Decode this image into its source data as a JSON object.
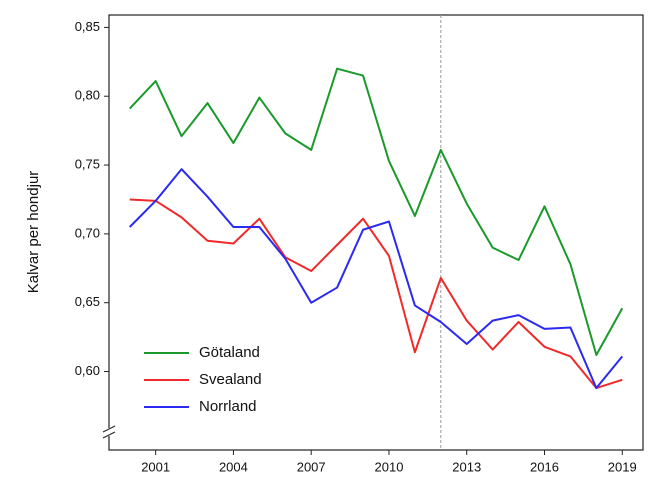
{
  "chart_data": {
    "type": "line",
    "y_label": "Kalvar per hondjur",
    "x": [
      2000,
      2001,
      2002,
      2003,
      2004,
      2005,
      2006,
      2007,
      2008,
      2009,
      2010,
      2011,
      2012,
      2013,
      2014,
      2015,
      2016,
      2017,
      2018,
      2019
    ],
    "series": [
      {
        "name": "Götaland",
        "color": "#1a9a2a",
        "values": [
          0.791,
          0.811,
          0.771,
          0.795,
          0.766,
          0.799,
          0.773,
          0.761,
          0.82,
          0.815,
          0.753,
          0.713,
          0.761,
          0.722,
          0.69,
          0.681,
          0.72,
          0.678,
          0.612,
          0.646
        ]
      },
      {
        "name": "Svealand",
        "color": "#f02a2a",
        "values": [
          0.725,
          0.724,
          0.712,
          0.695,
          0.693,
          0.711,
          0.683,
          0.673,
          0.692,
          0.711,
          0.684,
          0.614,
          0.668,
          0.637,
          0.616,
          0.636,
          0.618,
          0.611,
          0.588,
          0.594
        ]
      },
      {
        "name": "Norrland",
        "color": "#2a2af0",
        "values": [
          0.705,
          0.724,
          0.747,
          0.727,
          0.705,
          0.705,
          0.682,
          0.65,
          0.661,
          0.703,
          0.709,
          0.648,
          0.636,
          0.62,
          0.637,
          0.641,
          0.631,
          0.632,
          0.588,
          0.611
        ]
      }
    ],
    "xlim": [
      1999.2,
      2019.8
    ],
    "xticks": [
      2001,
      2004,
      2007,
      2010,
      2013,
      2016,
      2019
    ],
    "ylim": [
      0.543,
      0.859
    ],
    "yticks": [
      {
        "value": 0.6,
        "label": "0,60"
      },
      {
        "value": 0.65,
        "label": "0,65"
      },
      {
        "value": 0.7,
        "label": "0,70"
      },
      {
        "value": 0.75,
        "label": "0,75"
      },
      {
        "value": 0.8,
        "label": "0,80"
      },
      {
        "value": 0.85,
        "label": "0,85"
      }
    ],
    "vline": 2012,
    "legend": "lower-left"
  }
}
